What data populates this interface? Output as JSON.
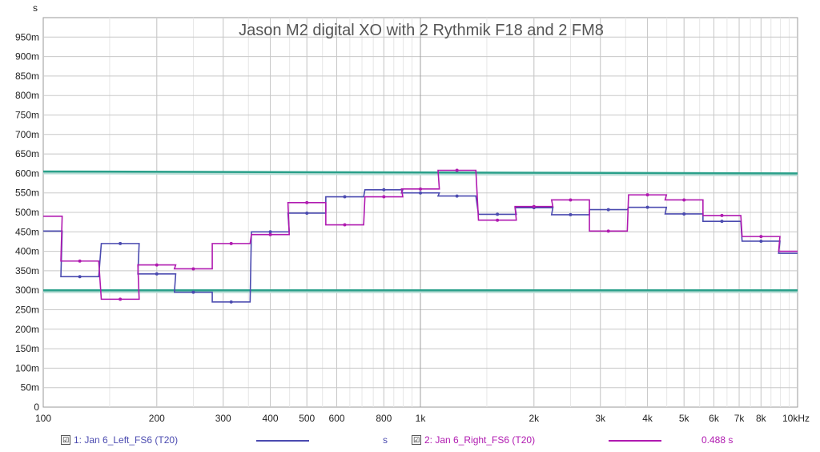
{
  "chart_data": {
    "type": "line",
    "title": "Jason M2 digital XO with 2 Rythmik F18 and 2 FM8",
    "ylabel": "s",
    "xlabel": "",
    "x_scale": "log",
    "xlim": [
      100,
      10000
    ],
    "ylim": [
      0,
      1.0
    ],
    "grid": true,
    "y_ticks": [
      {
        "value": 0.0,
        "label": "0"
      },
      {
        "value": 0.05,
        "label": "50m"
      },
      {
        "value": 0.1,
        "label": "100m"
      },
      {
        "value": 0.15,
        "label": "150m"
      },
      {
        "value": 0.2,
        "label": "200m"
      },
      {
        "value": 0.25,
        "label": "250m"
      },
      {
        "value": 0.3,
        "label": "300m"
      },
      {
        "value": 0.35,
        "label": "350m"
      },
      {
        "value": 0.4,
        "label": "400m"
      },
      {
        "value": 0.45,
        "label": "450m"
      },
      {
        "value": 0.5,
        "label": "500m"
      },
      {
        "value": 0.55,
        "label": "550m"
      },
      {
        "value": 0.6,
        "label": "600m"
      },
      {
        "value": 0.65,
        "label": "650m"
      },
      {
        "value": 0.7,
        "label": "700m"
      },
      {
        "value": 0.75,
        "label": "750m"
      },
      {
        "value": 0.8,
        "label": "800m"
      },
      {
        "value": 0.85,
        "label": "850m"
      },
      {
        "value": 0.9,
        "label": "900m"
      },
      {
        "value": 0.95,
        "label": "950m"
      }
    ],
    "x_ticks": [
      {
        "value": 100,
        "label": "100"
      },
      {
        "value": 200,
        "label": "200"
      },
      {
        "value": 300,
        "label": "300"
      },
      {
        "value": 400,
        "label": "400"
      },
      {
        "value": 500,
        "label": "500"
      },
      {
        "value": 600,
        "label": "600"
      },
      {
        "value": 800,
        "label": "800"
      },
      {
        "value": 1000,
        "label": "1k"
      },
      {
        "value": 2000,
        "label": "2k"
      },
      {
        "value": 3000,
        "label": "3k"
      },
      {
        "value": 4000,
        "label": "4k"
      },
      {
        "value": 5000,
        "label": "5k"
      },
      {
        "value": 6000,
        "label": "6k"
      },
      {
        "value": 7000,
        "label": "7k"
      },
      {
        "value": 8000,
        "label": "8k"
      },
      {
        "value": 10000,
        "label": "10kHz"
      }
    ],
    "third_octave_centers": [
      100,
      125,
      160,
      200,
      250,
      315,
      400,
      500,
      630,
      800,
      1000,
      1250,
      1600,
      2000,
      2500,
      3150,
      4000,
      5000,
      6300,
      8000,
      10000
    ],
    "series": [
      {
        "name": "1: Jan 6_Left_FS6 (T20)",
        "color": "#4b4bb0",
        "values": [
          0.452,
          0.335,
          0.42,
          0.342,
          0.295,
          0.27,
          0.45,
          0.498,
          0.54,
          0.558,
          0.55,
          0.542,
          0.495,
          0.512,
          0.494,
          0.507,
          0.513,
          0.496,
          0.477,
          0.426,
          0.395
        ]
      },
      {
        "name": "2: Jan 6_Right_FS6 (T20)",
        "color": "#b01ab0",
        "values": [
          0.49,
          0.375,
          0.277,
          0.365,
          0.355,
          0.42,
          0.443,
          0.525,
          0.468,
          0.54,
          0.56,
          0.608,
          0.48,
          0.515,
          0.532,
          0.452,
          0.545,
          0.532,
          0.492,
          0.438,
          0.4
        ]
      }
    ],
    "reference_lines": [
      {
        "y_start": 0.605,
        "y_end": 0.6,
        "color": "#2aa08a"
      },
      {
        "y_start": 0.3,
        "y_end": 0.3,
        "color": "#2aa08a"
      }
    ],
    "legend": [
      {
        "label": "1: Jan 6_Left_FS6 (T20)",
        "value": "s",
        "color": "#4b4bb0",
        "checked": "☑"
      },
      {
        "label": "2: Jan 6_Right_FS6 (T20)",
        "value": "0.488 s",
        "color": "#b01ab0",
        "checked": "☑"
      }
    ]
  }
}
